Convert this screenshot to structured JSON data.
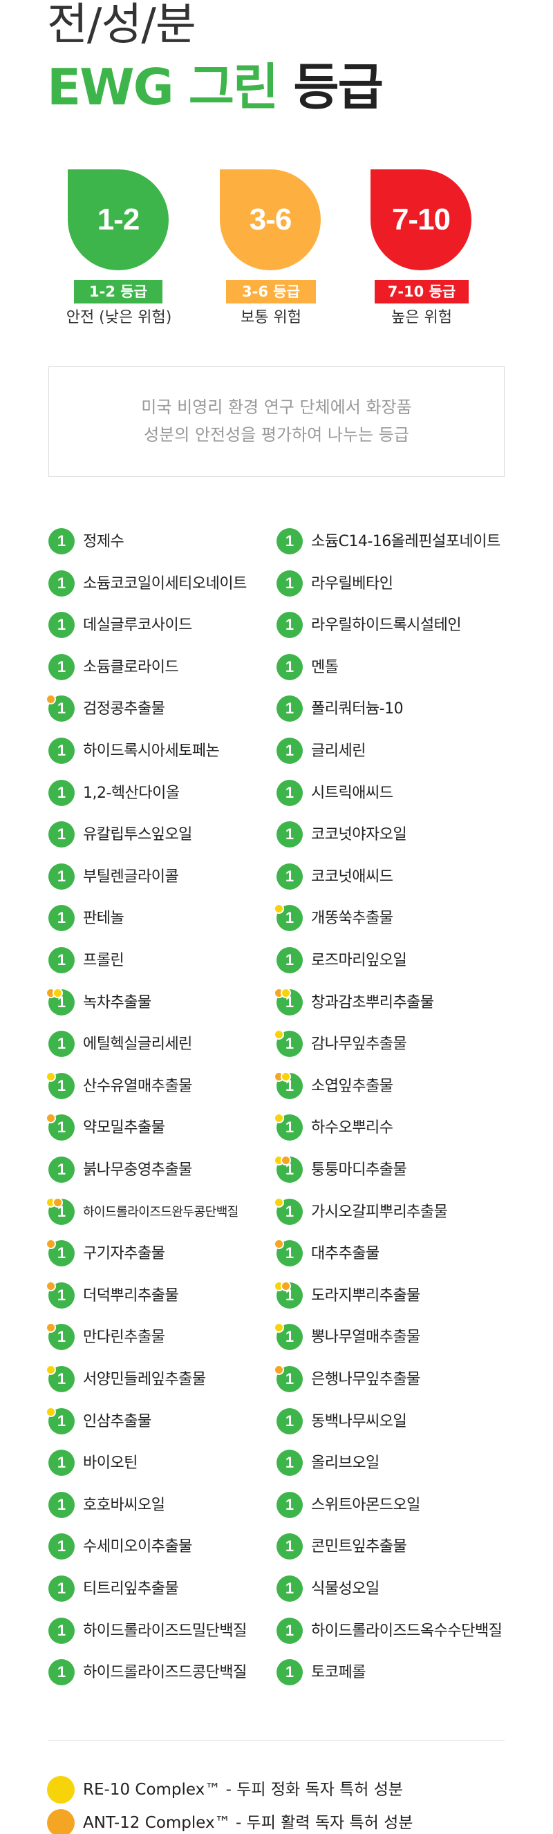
{
  "header": {
    "title_line1": "전/성/분",
    "title_green": "EWG 그린",
    "title_dark": "등급"
  },
  "colors": {
    "green": "#3db54a",
    "orange": "#fdb040",
    "red": "#ee1c25",
    "dot_yellow": "#f7d40a",
    "dot_orange": "#f5a524"
  },
  "grades": [
    {
      "icon_text": "1-2",
      "badge": "1-2 등급",
      "risk": "안전 (낮은 위험)",
      "color": "#3db54a"
    },
    {
      "icon_text": "3-6",
      "badge": "3-6 등급",
      "risk": "보통 위험",
      "color": "#fdb040"
    },
    {
      "icon_text": "7-10",
      "badge": "7-10 등급",
      "risk": "높은 위험",
      "color": "#ee1c25"
    }
  ],
  "description": {
    "line1": "미국 비영리 환경 연구 단체에서 화장품",
    "line2": "성분의 안전성을 평가하여 나누는 등급"
  },
  "ingredients_left": [
    {
      "name": "정제수",
      "grade": "1",
      "dots": []
    },
    {
      "name": "소듐코코일이세티오네이트",
      "grade": "1",
      "dots": []
    },
    {
      "name": "데실글루코사이드",
      "grade": "1",
      "dots": []
    },
    {
      "name": "소듐클로라이드",
      "grade": "1",
      "dots": []
    },
    {
      "name": "검정콩추출물",
      "grade": "1",
      "dots": [
        "o"
      ]
    },
    {
      "name": "하이드록시아세토페논",
      "grade": "1",
      "dots": []
    },
    {
      "name": "1,2-헥산다이올",
      "grade": "1",
      "dots": []
    },
    {
      "name": "유칼립투스잎오일",
      "grade": "1",
      "dots": []
    },
    {
      "name": "부틸렌글라이콜",
      "grade": "1",
      "dots": []
    },
    {
      "name": "판테놀",
      "grade": "1",
      "dots": []
    },
    {
      "name": "프롤린",
      "grade": "1",
      "dots": []
    },
    {
      "name": "녹차추출물",
      "grade": "1",
      "dots": [
        "o",
        "y"
      ]
    },
    {
      "name": "에틸헥실글리세린",
      "grade": "1",
      "dots": []
    },
    {
      "name": "산수유열매추출물",
      "grade": "1",
      "dots": [
        "y"
      ]
    },
    {
      "name": "약모밀추출물",
      "grade": "1",
      "dots": [
        "o"
      ]
    },
    {
      "name": "붉나무충영추출물",
      "grade": "1",
      "dots": []
    },
    {
      "name": "하이드롤라이즈드완두콩단백질",
      "grade": "1",
      "dots": [
        "y",
        "o"
      ],
      "small": true
    },
    {
      "name": "구기자추출물",
      "grade": "1",
      "dots": [
        "o"
      ]
    },
    {
      "name": "더덕뿌리추출물",
      "grade": "1",
      "dots": [
        "o"
      ]
    },
    {
      "name": "만다린추출물",
      "grade": "1",
      "dots": [
        "o"
      ]
    },
    {
      "name": "서양민들레잎추출물",
      "grade": "1",
      "dots": [
        "y"
      ]
    },
    {
      "name": "인삼추출물",
      "grade": "1",
      "dots": [
        "y"
      ]
    },
    {
      "name": "바이오틴",
      "grade": "1",
      "dots": []
    },
    {
      "name": "호호바씨오일",
      "grade": "1",
      "dots": []
    },
    {
      "name": "수세미오이추출물",
      "grade": "1",
      "dots": []
    },
    {
      "name": "티트리잎추출물",
      "grade": "1",
      "dots": []
    },
    {
      "name": "하이드롤라이즈드밀단백질",
      "grade": "1",
      "dots": []
    },
    {
      "name": "하이드롤라이즈드콩단백질",
      "grade": "1",
      "dots": []
    }
  ],
  "ingredients_right": [
    {
      "name": "소듐C14-16올레핀설포네이트",
      "grade": "1",
      "dots": []
    },
    {
      "name": "라우릴베타인",
      "grade": "1",
      "dots": []
    },
    {
      "name": "라우릴하이드록시설테인",
      "grade": "1",
      "dots": []
    },
    {
      "name": "멘톨",
      "grade": "1",
      "dots": []
    },
    {
      "name": "폴리쿼터늄-10",
      "grade": "1",
      "dots": []
    },
    {
      "name": "글리세린",
      "grade": "1",
      "dots": []
    },
    {
      "name": "시트릭애씨드",
      "grade": "1",
      "dots": []
    },
    {
      "name": "코코넛야자오일",
      "grade": "1",
      "dots": []
    },
    {
      "name": "코코넛애씨드",
      "grade": "1",
      "dots": []
    },
    {
      "name": "개똥쑥추출물",
      "grade": "1",
      "dots": [
        "y"
      ]
    },
    {
      "name": "로즈마리잎오일",
      "grade": "1",
      "dots": []
    },
    {
      "name": "창과감초뿌리추출물",
      "grade": "1",
      "dots": [
        "o",
        "y"
      ]
    },
    {
      "name": "감나무잎추출물",
      "grade": "1",
      "dots": [
        "y"
      ]
    },
    {
      "name": "소엽잎추출물",
      "grade": "1",
      "dots": [
        "o",
        "y"
      ]
    },
    {
      "name": "하수오뿌리수",
      "grade": "1",
      "dots": [
        "y"
      ]
    },
    {
      "name": "퉁퉁마디추출물",
      "grade": "1",
      "dots": [
        "y",
        "o"
      ]
    },
    {
      "name": "가시오갈피뿌리추출물",
      "grade": "1",
      "dots": [
        "y"
      ]
    },
    {
      "name": "대추추출물",
      "grade": "1",
      "dots": [
        "o"
      ]
    },
    {
      "name": "도라지뿌리추출물",
      "grade": "1",
      "dots": [
        "y",
        "o"
      ]
    },
    {
      "name": "뽕나무열매추출물",
      "grade": "1",
      "dots": [
        "y"
      ]
    },
    {
      "name": "은행나무잎추출물",
      "grade": "1",
      "dots": [
        "o"
      ]
    },
    {
      "name": "동백나무씨오일",
      "grade": "1",
      "dots": []
    },
    {
      "name": "올리브오일",
      "grade": "1",
      "dots": []
    },
    {
      "name": "스위트아몬드오일",
      "grade": "1",
      "dots": []
    },
    {
      "name": "콘민트잎추출물",
      "grade": "1",
      "dots": []
    },
    {
      "name": "식물성오일",
      "grade": "1",
      "dots": []
    },
    {
      "name": "하이드롤라이즈드옥수수단백질",
      "grade": "1",
      "dots": []
    },
    {
      "name": "토코페롤",
      "grade": "1",
      "dots": []
    }
  ],
  "legend": [
    {
      "text": "RE-10 Complex™ - 두피 정화 독자 특허 성분",
      "color": "#f7d40a"
    },
    {
      "text": "ANT-12 Complex™ - 두피 활력 독자 특허 성분",
      "color": "#f5a524"
    }
  ]
}
